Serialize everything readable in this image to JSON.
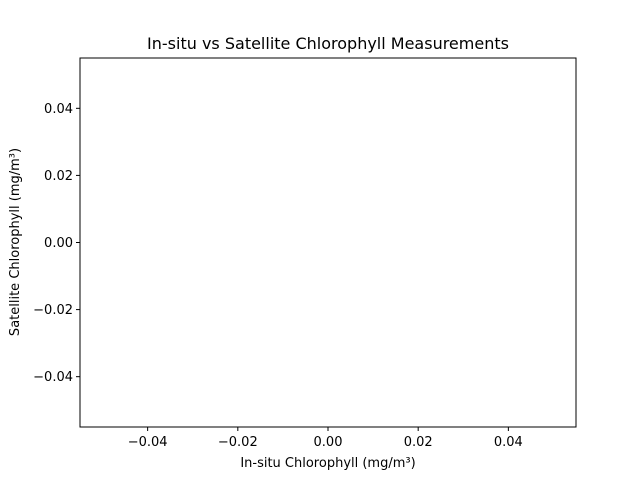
{
  "chart_data": {
    "type": "scatter",
    "title": "In-situ vs Satellite Chlorophyll Measurements",
    "xlabel": "In-situ Chlorophyll (mg/m³)",
    "ylabel": "Satellite Chlorophyll (mg/m³)",
    "xlim": [
      -0.055,
      0.055
    ],
    "ylim": [
      -0.055,
      0.055
    ],
    "x_ticks": [
      -0.04,
      -0.02,
      0.0,
      0.02,
      0.04
    ],
    "y_ticks": [
      -0.04,
      -0.02,
      0.0,
      0.02,
      0.04
    ],
    "x_tick_labels": [
      "−0.04",
      "−0.02",
      "0.00",
      "0.02",
      "0.04"
    ],
    "y_tick_labels": [
      "−0.04",
      "−0.02",
      "0.00",
      "0.02",
      "0.04"
    ],
    "grid": false,
    "series": [
      {
        "x": [],
        "y": []
      }
    ]
  },
  "colors": {
    "axis": "#000000",
    "background": "#ffffff"
  }
}
